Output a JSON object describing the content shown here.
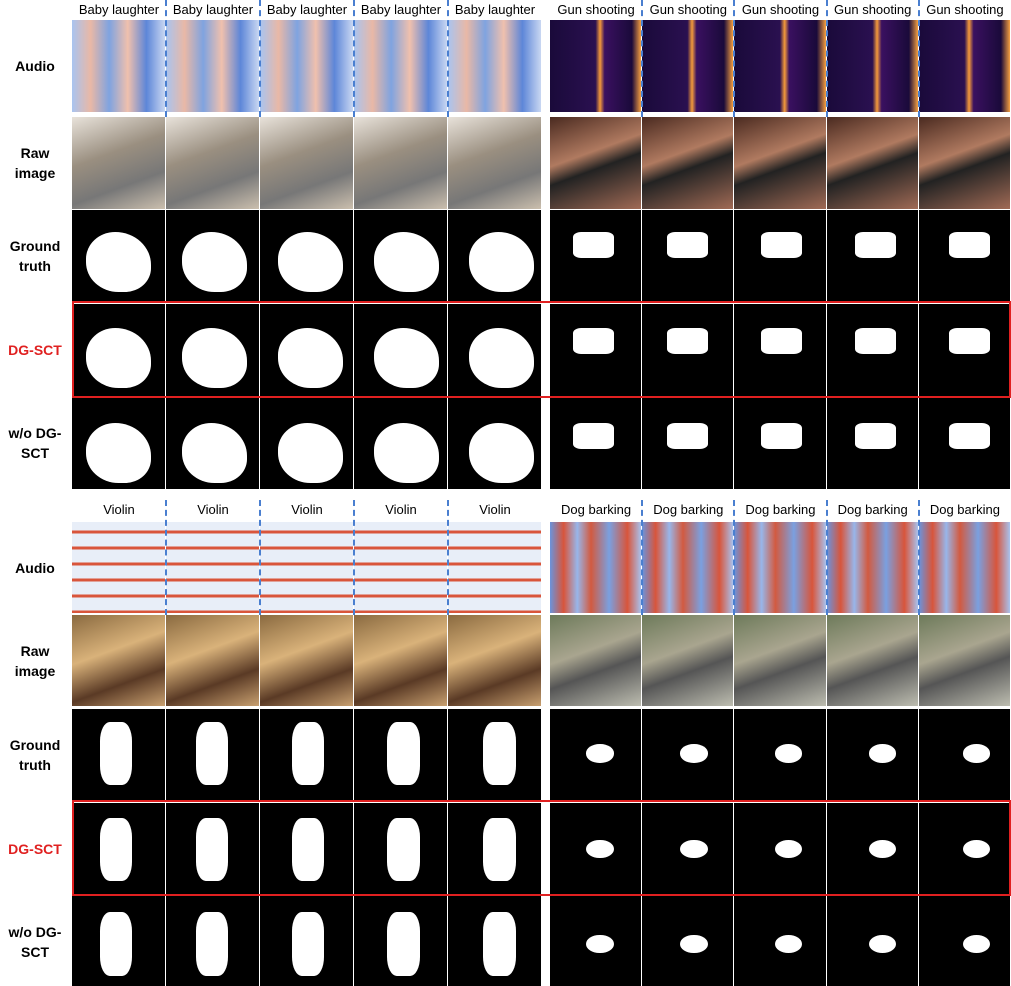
{
  "row_labels": [
    "Audio",
    "Raw image",
    "Ground truth",
    "DG-SCT",
    "w/o DG-SCT"
  ],
  "blocks": [
    {
      "groups": [
        {
          "labels": [
            "Baby laughter",
            "Baby laughter",
            "Baby laughter",
            "Baby laughter",
            "Baby laughter"
          ]
        },
        {
          "labels": [
            "Gun shooting",
            "Gun shooting",
            "Gun shooting",
            "Gun shooting",
            "Gun shooting"
          ]
        }
      ]
    },
    {
      "groups": [
        {
          "labels": [
            "Violin",
            "Violin",
            "Violin",
            "Violin",
            "Violin"
          ]
        },
        {
          "labels": [
            "Dog barking",
            "Dog barking",
            "Dog barking",
            "Dog barking",
            "Dog barking"
          ]
        }
      ]
    }
  ]
}
